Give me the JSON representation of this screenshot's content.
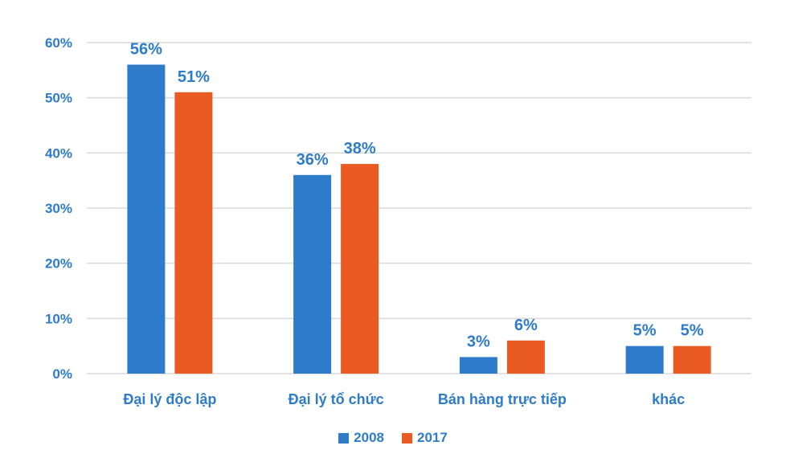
{
  "chart_data": {
    "type": "bar",
    "categories": [
      "Đại lý độc lập",
      "Đại lý tổ chức",
      "Bán hàng trực tiếp",
      "khác"
    ],
    "series": [
      {
        "name": "2008",
        "values": [
          56,
          36,
          3,
          5
        ],
        "color": "#2e7cc9"
      },
      {
        "name": "2017",
        "values": [
          51,
          38,
          6,
          5
        ],
        "color": "#e95b23"
      }
    ],
    "data_labels": [
      [
        "56%",
        "36%",
        "3%",
        "5%"
      ],
      [
        "51%",
        "38%",
        "6%",
        "5%"
      ]
    ],
    "ylim": [
      0,
      60
    ],
    "yticks": [
      0,
      10,
      20,
      30,
      40,
      50,
      60
    ],
    "ytick_labels": [
      "0%",
      "10%",
      "20%",
      "30%",
      "40%",
      "50%",
      "60%"
    ],
    "grid": true,
    "legend_position": "bottom",
    "text_color": "#2e7cc9",
    "grid_color": "#d9d9d9"
  }
}
